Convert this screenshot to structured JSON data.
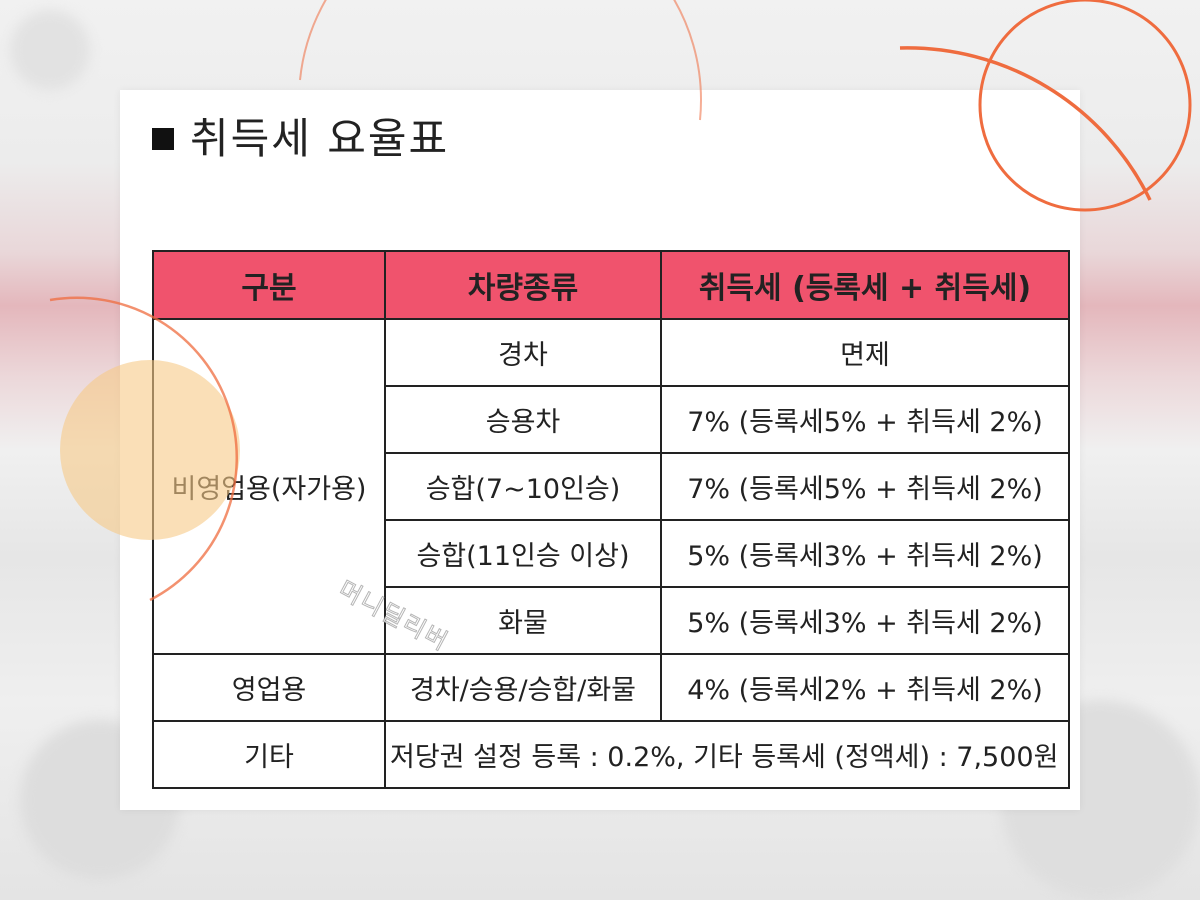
{
  "page": {
    "title": "취득세 요율표",
    "watermark": "머니딜리버"
  },
  "table": {
    "headers": [
      "구분",
      "차량종류",
      "취득세 (등록세 + 취득세)"
    ],
    "groups": [
      {
        "category": "비영업용(자가용)",
        "rows": [
          {
            "vehicle": "경차",
            "rate": "면제"
          },
          {
            "vehicle": "승용차",
            "rate": "7% (등록세5% + 취득세 2%)"
          },
          {
            "vehicle": "승합(7~10인승)",
            "rate": "7% (등록세5% + 취득세 2%)"
          },
          {
            "vehicle": "승합(11인승 이상)",
            "rate": "5% (등록세3% + 취득세 2%)"
          },
          {
            "vehicle": "화물",
            "rate": "5% (등록세3% + 취득세 2%)"
          }
        ]
      },
      {
        "category": "영업용",
        "rows": [
          {
            "vehicle": "경차/승용/승합/화물",
            "rate": "4% (등록세2% + 취득세 2%)"
          }
        ]
      }
    ],
    "etc": {
      "category": "기타",
      "note": "저당권 설정 등록 : 0.2%, 기타 등록세 (정액세) : 7,500원"
    }
  },
  "colors": {
    "header_bg": "#f0536d",
    "accent_orange": "#ef6c3f",
    "peach": "#f7c987"
  }
}
